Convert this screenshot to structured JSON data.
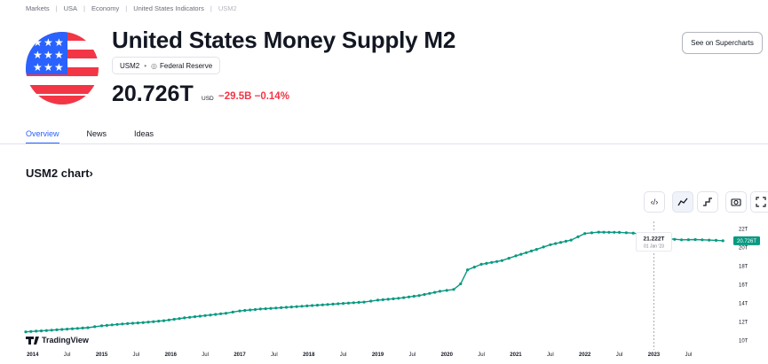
{
  "breadcrumb": [
    "Markets",
    "USA",
    "Economy",
    "United States Indicators",
    "USM2"
  ],
  "header": {
    "title": "United States Money Supply M2",
    "symbol": "USM2",
    "source": "Federal Reserve",
    "price": "20.726T",
    "currency": "USD",
    "change": "−29.5B −0.14%",
    "supercharts_label": "See on Supercharts"
  },
  "tabs": [
    {
      "label": "Overview",
      "active": true
    },
    {
      "label": "News",
      "active": false
    },
    {
      "label": "Ideas",
      "active": false
    }
  ],
  "chart_heading": "USM2 chart›",
  "toolbar": {
    "icons": [
      "embed-icon",
      "line-chart-icon",
      "step-line-icon",
      "camera-icon",
      "fullscreen-icon"
    ]
  },
  "watermark": "TradingView",
  "colors": {
    "accent": "#2962ff",
    "negative": "#f23645",
    "series": "#089981"
  },
  "chart_data": {
    "type": "line",
    "x_ticks": [
      "2014",
      "Jul",
      "2015",
      "Jul",
      "2016",
      "Jul",
      "2017",
      "Jul",
      "2018",
      "Jul",
      "2019",
      "Jul",
      "2020",
      "Jul",
      "2021",
      "Jul",
      "2022",
      "Jul",
      "2023",
      "Jul"
    ],
    "y_ticks": [
      "22T",
      "20T",
      "18T",
      "16T",
      "14T",
      "12T",
      "10T"
    ],
    "ylim": [
      9.5,
      22.8
    ],
    "x_start": 2013.9,
    "x_end": 2024.1,
    "last_value_label": "20.726T",
    "tooltip": {
      "value": "21.222T",
      "date": "01 Jan '23",
      "x": 2023.0
    },
    "series": [
      {
        "points": [
          [
            2013.9,
            10.95
          ],
          [
            2014.2,
            11.1
          ],
          [
            2014.5,
            11.25
          ],
          [
            2014.8,
            11.4
          ],
          [
            2015.0,
            11.6
          ],
          [
            2015.3,
            11.8
          ],
          [
            2015.6,
            11.95
          ],
          [
            2015.9,
            12.15
          ],
          [
            2016.2,
            12.45
          ],
          [
            2016.5,
            12.7
          ],
          [
            2016.8,
            12.95
          ],
          [
            2017.0,
            13.2
          ],
          [
            2017.3,
            13.4
          ],
          [
            2017.6,
            13.55
          ],
          [
            2017.9,
            13.7
          ],
          [
            2018.2,
            13.85
          ],
          [
            2018.5,
            14.0
          ],
          [
            2018.8,
            14.15
          ],
          [
            2019.0,
            14.35
          ],
          [
            2019.3,
            14.55
          ],
          [
            2019.6,
            14.85
          ],
          [
            2019.9,
            15.3
          ],
          [
            2020.1,
            15.5
          ],
          [
            2020.2,
            16.1
          ],
          [
            2020.3,
            17.6
          ],
          [
            2020.5,
            18.2
          ],
          [
            2020.8,
            18.6
          ],
          [
            2021.0,
            19.1
          ],
          [
            2021.3,
            19.8
          ],
          [
            2021.5,
            20.3
          ],
          [
            2021.8,
            20.8
          ],
          [
            2022.0,
            21.5
          ],
          [
            2022.2,
            21.65
          ],
          [
            2022.5,
            21.62
          ],
          [
            2022.7,
            21.55
          ],
          [
            2022.9,
            21.35
          ],
          [
            2023.0,
            21.22
          ],
          [
            2023.2,
            20.95
          ],
          [
            2023.4,
            20.82
          ],
          [
            2023.6,
            20.85
          ],
          [
            2023.8,
            20.8
          ],
          [
            2024.0,
            20.726
          ]
        ]
      }
    ]
  }
}
